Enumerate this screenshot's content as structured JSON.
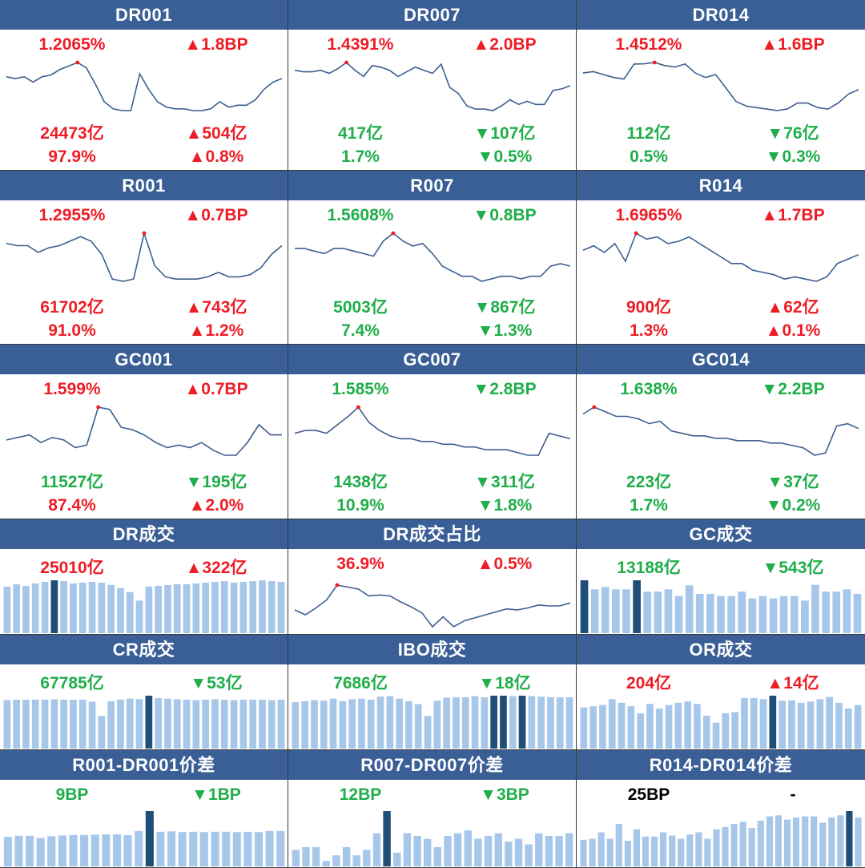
{
  "colors": {
    "header_bg": "#3a5f96",
    "up": "#ee1c25",
    "down": "#1fae4a",
    "neutral": "#000000",
    "line": "#3d5f8f",
    "bar": "#a7c7ea",
    "bar_highlight": "#1f4e79",
    "peak_marker": "#ee1c25"
  },
  "rate_panels": [
    {
      "title": "DR001",
      "rate": "1.2065%",
      "rate_dir": "up",
      "rate_chg": "▲1.8BP",
      "chg_dir": "up",
      "volume": "24473亿",
      "vol_dir": "up",
      "vol_chg": "▲504亿",
      "vol_chg_dir": "up",
      "share": "97.9%",
      "share_dir": "up",
      "share_chg": "▲0.8%",
      "share_chg_dir": "up"
    },
    {
      "title": "DR007",
      "rate": "1.4391%",
      "rate_dir": "up",
      "rate_chg": "▲2.0BP",
      "chg_dir": "up",
      "volume": "417亿",
      "vol_dir": "down",
      "vol_chg": "▼107亿",
      "vol_chg_dir": "down",
      "share": "1.7%",
      "share_dir": "down",
      "share_chg": "▼0.5%",
      "share_chg_dir": "down"
    },
    {
      "title": "DR014",
      "rate": "1.4512%",
      "rate_dir": "up",
      "rate_chg": "▲1.6BP",
      "chg_dir": "up",
      "volume": "112亿",
      "vol_dir": "down",
      "vol_chg": "▼76亿",
      "vol_chg_dir": "down",
      "share": "0.5%",
      "share_dir": "down",
      "share_chg": "▼0.3%",
      "share_chg_dir": "down"
    },
    {
      "title": "R001",
      "rate": "1.2955%",
      "rate_dir": "up",
      "rate_chg": "▲0.7BP",
      "chg_dir": "up",
      "volume": "61702亿",
      "vol_dir": "up",
      "vol_chg": "▲743亿",
      "vol_chg_dir": "up",
      "share": "91.0%",
      "share_dir": "up",
      "share_chg": "▲1.2%",
      "share_chg_dir": "up"
    },
    {
      "title": "R007",
      "rate": "1.5608%",
      "rate_dir": "down",
      "rate_chg": "▼0.8BP",
      "chg_dir": "down",
      "volume": "5003亿",
      "vol_dir": "down",
      "vol_chg": "▼867亿",
      "vol_chg_dir": "down",
      "share": "7.4%",
      "share_dir": "down",
      "share_chg": "▼1.3%",
      "share_chg_dir": "down"
    },
    {
      "title": "R014",
      "rate": "1.6965%",
      "rate_dir": "up",
      "rate_chg": "▲1.7BP",
      "chg_dir": "up",
      "volume": "900亿",
      "vol_dir": "up",
      "vol_chg": "▲62亿",
      "vol_chg_dir": "up",
      "share": "1.3%",
      "share_dir": "up",
      "share_chg": "▲0.1%",
      "share_chg_dir": "up"
    },
    {
      "title": "GC001",
      "rate": "1.599%",
      "rate_dir": "up",
      "rate_chg": "▲0.7BP",
      "chg_dir": "up",
      "volume": "11527亿",
      "vol_dir": "down",
      "vol_chg": "▼195亿",
      "vol_chg_dir": "down",
      "share": "87.4%",
      "share_dir": "up",
      "share_chg": "▲2.0%",
      "share_chg_dir": "up"
    },
    {
      "title": "GC007",
      "rate": "1.585%",
      "rate_dir": "down",
      "rate_chg": "▼2.8BP",
      "chg_dir": "down",
      "volume": "1438亿",
      "vol_dir": "down",
      "vol_chg": "▼311亿",
      "vol_chg_dir": "down",
      "share": "10.9%",
      "share_dir": "down",
      "share_chg": "▼1.8%",
      "share_chg_dir": "down"
    },
    {
      "title": "GC014",
      "rate": "1.638%",
      "rate_dir": "down",
      "rate_chg": "▼2.2BP",
      "chg_dir": "down",
      "volume": "223亿",
      "vol_dir": "down",
      "vol_chg": "▼37亿",
      "vol_chg_dir": "down",
      "share": "1.7%",
      "share_dir": "down",
      "share_chg": "▼0.2%",
      "share_chg_dir": "down"
    }
  ],
  "volume_panels": [
    {
      "title": "DR成交",
      "value": "25010亿",
      "value_dir": "up",
      "chg": "▲322亿",
      "chg_dir": "up"
    },
    {
      "title": "DR成交占比",
      "value": "36.9%",
      "value_dir": "up",
      "chg": "▲0.5%",
      "chg_dir": "up"
    },
    {
      "title": "GC成交",
      "value": "13188亿",
      "value_dir": "down",
      "chg": "▼543亿",
      "chg_dir": "down"
    },
    {
      "title": "CR成交",
      "value": "67785亿",
      "value_dir": "down",
      "chg": "▼53亿",
      "chg_dir": "down"
    },
    {
      "title": "IBO成交",
      "value": "7686亿",
      "value_dir": "down",
      "chg": "▼18亿",
      "chg_dir": "down"
    },
    {
      "title": "OR成交",
      "value": "204亿",
      "value_dir": "up",
      "chg": "▲14亿",
      "chg_dir": "up"
    },
    {
      "title": "R001-DR001价差",
      "value": "9BP",
      "value_dir": "down",
      "chg": "▼1BP",
      "chg_dir": "down"
    },
    {
      "title": "R007-DR007价差",
      "value": "12BP",
      "value_dir": "down",
      "chg": "▼3BP",
      "chg_dir": "down"
    },
    {
      "title": "R014-DR014价差",
      "value": "25BP",
      "value_dir": "neutral",
      "chg": "-",
      "chg_dir": "neutral"
    }
  ],
  "chart_data": [
    {
      "type": "line",
      "series": [
        {
          "values": [
            1.19,
            1.18,
            1.19,
            1.16,
            1.19,
            1.2,
            1.23,
            1.25,
            1.27,
            1.24,
            1.15,
            1.05,
            1.01,
            1.0,
            1.0,
            1.2065,
            1.12,
            1.05,
            1.02,
            1.01,
            1.01,
            1.0,
            1.0,
            1.01,
            1.05,
            1.02,
            1.03,
            1.03,
            1.06,
            1.12,
            1.16,
            1.18
          ]
        }
      ]
    },
    {
      "type": "line",
      "series": [
        {
          "values": [
            1.4,
            1.39,
            1.39,
            1.4,
            1.38,
            1.41,
            1.45,
            1.4,
            1.36,
            1.43,
            1.42,
            1.4,
            1.36,
            1.39,
            1.42,
            1.4,
            1.38,
            1.4391,
            1.29,
            1.25,
            1.17,
            1.15,
            1.15,
            1.14,
            1.17,
            1.21,
            1.18,
            1.2,
            1.18,
            1.18,
            1.27,
            1.28,
            1.3
          ]
        }
      ]
    },
    {
      "type": "line",
      "series": [
        {
          "values": [
            1.39,
            1.4,
            1.38,
            1.36,
            1.35,
            1.45,
            1.4512,
            1.46,
            1.44,
            1.43,
            1.45,
            1.39,
            1.36,
            1.38,
            1.29,
            1.2,
            1.17,
            1.16,
            1.15,
            1.14,
            1.15,
            1.19,
            1.19,
            1.16,
            1.15,
            1.19,
            1.25,
            1.28
          ]
        }
      ]
    },
    {
      "type": "line",
      "series": [
        {
          "values": [
            1.25,
            1.24,
            1.24,
            1.21,
            1.23,
            1.24,
            1.26,
            1.28,
            1.26,
            1.2,
            1.09,
            1.08,
            1.09,
            1.2955,
            1.15,
            1.1,
            1.09,
            1.09,
            1.09,
            1.1,
            1.12,
            1.1,
            1.1,
            1.11,
            1.14,
            1.2,
            1.24
          ]
        }
      ]
    },
    {
      "type": "line",
      "series": [
        {
          "values": [
            1.5,
            1.5,
            1.49,
            1.48,
            1.5,
            1.5,
            1.49,
            1.48,
            1.47,
            1.53,
            1.5608,
            1.53,
            1.51,
            1.52,
            1.48,
            1.43,
            1.41,
            1.39,
            1.39,
            1.37,
            1.38,
            1.39,
            1.39,
            1.38,
            1.39,
            1.39,
            1.43,
            1.44,
            1.43
          ]
        }
      ]
    },
    {
      "type": "line",
      "series": [
        {
          "values": [
            1.62,
            1.64,
            1.61,
            1.65,
            1.57,
            1.6965,
            1.67,
            1.68,
            1.65,
            1.66,
            1.68,
            1.65,
            1.62,
            1.59,
            1.56,
            1.56,
            1.53,
            1.52,
            1.51,
            1.49,
            1.5,
            1.49,
            1.48,
            1.5,
            1.56,
            1.58,
            1.6
          ]
        }
      ]
    },
    {
      "type": "line",
      "series": [
        {
          "values": [
            1.47,
            1.48,
            1.49,
            1.46,
            1.48,
            1.47,
            1.44,
            1.45,
            1.599,
            1.59,
            1.52,
            1.51,
            1.49,
            1.46,
            1.44,
            1.45,
            1.44,
            1.46,
            1.43,
            1.41,
            1.41,
            1.46,
            1.53,
            1.49,
            1.49
          ]
        }
      ]
    },
    {
      "type": "line",
      "series": [
        {
          "values": [
            1.49,
            1.5,
            1.5,
            1.49,
            1.52,
            1.55,
            1.585,
            1.53,
            1.5,
            1.48,
            1.47,
            1.47,
            1.46,
            1.46,
            1.45,
            1.45,
            1.44,
            1.44,
            1.43,
            1.43,
            1.43,
            1.42,
            1.41,
            1.41,
            1.49,
            1.48,
            1.47
          ]
        }
      ]
    },
    {
      "type": "line",
      "series": [
        {
          "values": [
            1.61,
            1.638,
            1.62,
            1.6,
            1.6,
            1.59,
            1.57,
            1.58,
            1.54,
            1.53,
            1.52,
            1.52,
            1.51,
            1.51,
            1.5,
            1.5,
            1.5,
            1.49,
            1.49,
            1.48,
            1.47,
            1.44,
            1.45,
            1.56,
            1.57,
            1.55
          ]
        }
      ]
    },
    {
      "type": "bar",
      "values": [
        24200,
        24500,
        24300,
        24600,
        24800,
        25010,
        24900,
        24600,
        24700,
        24800,
        24700,
        24400,
        24000,
        23500,
        22400,
        24200,
        24300,
        24400,
        24500,
        24500,
        24600,
        24700,
        24800,
        24900,
        24700,
        24800,
        24900,
        25000,
        24900,
        24800
      ]
    },
    {
      "type": "line",
      "series": [
        {
          "values": [
            34.4,
            33.9,
            34.6,
            35.4,
            36.9,
            36.7,
            36.5,
            35.8,
            35.9,
            35.8,
            35.2,
            34.7,
            34.1,
            32.7,
            33.7,
            32.7,
            33.3,
            33.6,
            33.9,
            34.2,
            34.5,
            34.4,
            34.6,
            34.9,
            34.8,
            34.8,
            35.1
          ]
        }
      ]
    },
    {
      "type": "bar",
      "values": [
        13300,
        13100,
        13150,
        13100,
        13100,
        13300,
        13050,
        13050,
        13100,
        12950,
        13188,
        13000,
        13000,
        12950,
        12950,
        13050,
        12900,
        12950,
        12900,
        12950,
        12950,
        12850,
        13200,
        13050,
        13050,
        13100,
        13000
      ]
    },
    {
      "type": "bar",
      "values": [
        66900,
        67000,
        67000,
        67000,
        67000,
        67100,
        67000,
        67000,
        67000,
        66600,
        63800,
        66700,
        67000,
        67200,
        67100,
        67785,
        67300,
        67200,
        67100,
        67000,
        66900,
        67000,
        67100,
        67000,
        66900,
        67000,
        67000,
        67000,
        66900,
        67000
      ]
    },
    {
      "type": "bar",
      "values": [
        7200,
        7300,
        7400,
        7350,
        7550,
        7300,
        7500,
        7550,
        7450,
        7750,
        7800,
        7550,
        7300,
        7000,
        5800,
        7350,
        7650,
        7700,
        7700,
        7800,
        7686,
        7850,
        7850,
        7800,
        7850,
        7800,
        7750,
        7700,
        7700,
        7700
      ]
    },
    {
      "type": "bar",
      "values": [
        175,
        180,
        185,
        210,
        195,
        180,
        150,
        190,
        170,
        185,
        195,
        200,
        190,
        140,
        110,
        150,
        155,
        215,
        215,
        210,
        225,
        204,
        205,
        195,
        200,
        210,
        220,
        195,
        170,
        185
      ]
    },
    {
      "type": "bar",
      "values": [
        8,
        8.3,
        8.3,
        7.7,
        8.2,
        8.4,
        8.5,
        8.5,
        8.6,
        8.7,
        8.7,
        8.5,
        9.6,
        15,
        9.4,
        9.5,
        9.3,
        9.4,
        9.3,
        9.4,
        9.4,
        9.3,
        9.4,
        9.3,
        9.6,
        9.6
      ]
    },
    {
      "type": "bar",
      "values": [
        6,
        7,
        7,
        2,
        4,
        7,
        4,
        6,
        12,
        20,
        5,
        12,
        11,
        10,
        7,
        11,
        12,
        13,
        10,
        11,
        12,
        9,
        10,
        8,
        12,
        11,
        11,
        12
      ]
    },
    {
      "type": "bar",
      "values": [
        25,
        26,
        32,
        26,
        40,
        24,
        35,
        28,
        28,
        32,
        29,
        26,
        30,
        32,
        26,
        35,
        37,
        40,
        42,
        36,
        43,
        47,
        48,
        44,
        46,
        47,
        47,
        41,
        46,
        48,
        52,
        46
      ]
    }
  ]
}
